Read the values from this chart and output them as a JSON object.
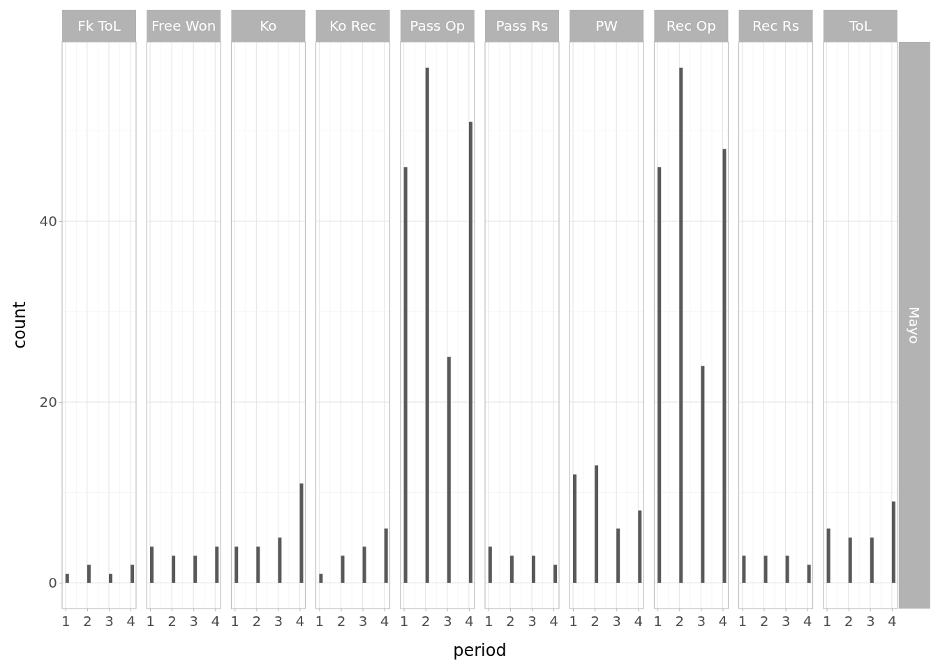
{
  "chart_data": [
    {
      "type": "bar",
      "title": "Fk ToL",
      "ylabel": "count",
      "x": [
        1,
        2,
        3,
        4
      ],
      "values": [
        1,
        2,
        1,
        2
      ],
      "color": "#595959",
      "xlim": [
        0.845,
        4.255
      ],
      "xticks": [
        1,
        2,
        3,
        4
      ],
      "ylim": [
        -2.85,
        59.85
      ],
      "yticks": [
        0,
        20,
        40
      ],
      "grid": true
    },
    {
      "type": "bar",
      "title": "Free Won",
      "x": [
        1,
        2,
        3,
        4
      ],
      "values": [
        4,
        3,
        3,
        4
      ],
      "color": "#595959",
      "xlim": [
        0.845,
        4.255
      ],
      "xticks": [
        1,
        2,
        3,
        4
      ],
      "ylim": [
        -2.85,
        59.85
      ],
      "yticks": [
        0,
        20,
        40
      ],
      "grid": true,
      "tick_labels": "x"
    },
    {
      "type": "bar",
      "title": "Ko",
      "x": [
        1,
        2,
        3,
        4
      ],
      "values": [
        4,
        4,
        5,
        11
      ],
      "color": "#595959",
      "xlim": [
        0.845,
        4.255
      ],
      "xticks": [
        1,
        2,
        3,
        4
      ],
      "ylim": [
        -2.85,
        59.85
      ],
      "yticks": [
        0,
        20,
        40
      ],
      "grid": true,
      "tick_labels": "x"
    },
    {
      "type": "bar",
      "title": "Ko Rec",
      "x": [
        1,
        2,
        3,
        4
      ],
      "values": [
        1,
        3,
        4,
        6
      ],
      "color": "#595959",
      "xlim": [
        0.845,
        4.255
      ],
      "xticks": [
        1,
        2,
        3,
        4
      ],
      "ylim": [
        -2.85,
        59.85
      ],
      "yticks": [
        0,
        20,
        40
      ],
      "grid": true,
      "tick_labels": "x"
    },
    {
      "type": "bar",
      "title": "Pass Op",
      "xlabel": "period",
      "x": [
        1,
        2,
        3,
        4
      ],
      "values": [
        46,
        57,
        25,
        51
      ],
      "color": "#595959",
      "xlim": [
        0.845,
        4.255
      ],
      "xticks": [
        1,
        2,
        3,
        4
      ],
      "ylim": [
        -2.85,
        59.85
      ],
      "yticks": [
        0,
        20,
        40
      ],
      "grid": true,
      "tick_labels": "x"
    },
    {
      "type": "bar",
      "title": "Pass Rs",
      "x": [
        1,
        2,
        3,
        4
      ],
      "values": [
        4,
        3,
        3,
        2
      ],
      "color": "#595959",
      "xlim": [
        0.845,
        4.255
      ],
      "xticks": [
        1,
        2,
        3,
        4
      ],
      "ylim": [
        -2.85,
        59.85
      ],
      "yticks": [
        0,
        20,
        40
      ],
      "grid": true,
      "tick_labels": "x"
    },
    {
      "type": "bar",
      "title": "PW",
      "x": [
        1,
        2,
        3,
        4
      ],
      "values": [
        12,
        13,
        6,
        8
      ],
      "color": "#595959",
      "xlim": [
        0.845,
        4.255
      ],
      "xticks": [
        1,
        2,
        3,
        4
      ],
      "ylim": [
        -2.85,
        59.85
      ],
      "yticks": [
        0,
        20,
        40
      ],
      "grid": true,
      "tick_labels": "x"
    },
    {
      "type": "bar",
      "title": "Rec Op",
      "x": [
        1,
        2,
        3,
        4
      ],
      "values": [
        46,
        57,
        24,
        48
      ],
      "color": "#595959",
      "xlim": [
        0.845,
        4.255
      ],
      "xticks": [
        1,
        2,
        3,
        4
      ],
      "ylim": [
        -2.85,
        59.85
      ],
      "yticks": [
        0,
        20,
        40
      ],
      "grid": true,
      "tick_labels": "x"
    },
    {
      "type": "bar",
      "title": "Rec Rs",
      "x": [
        1,
        2,
        3,
        4
      ],
      "values": [
        3,
        3,
        3,
        2
      ],
      "color": "#595959",
      "xlim": [
        0.845,
        4.255
      ],
      "xticks": [
        1,
        2,
        3,
        4
      ],
      "ylim": [
        -2.85,
        59.85
      ],
      "yticks": [
        0,
        20,
        40
      ],
      "grid": true,
      "tick_labels": "x"
    },
    {
      "type": "bar",
      "title": "ToL",
      "x": [
        1,
        2,
        3,
        4
      ],
      "values": [
        6,
        5,
        5,
        9
      ],
      "color": "#595959",
      "xlim": [
        0.845,
        4.255
      ],
      "xticks": [
        1,
        2,
        3,
        4
      ],
      "ylim": [
        -2.85,
        59.85
      ],
      "yticks": [
        0,
        20,
        40
      ],
      "grid": true,
      "tick_labels": "x",
      "annotations": [
        "Mayo"
      ]
    }
  ]
}
